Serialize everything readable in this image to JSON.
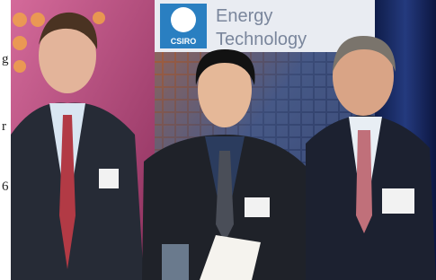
{
  "banner": {
    "logo": "CSIRO",
    "line1": "Energy",
    "line2": "Technology"
  },
  "margin_fragments": [
    "g",
    "r",
    "6"
  ]
}
